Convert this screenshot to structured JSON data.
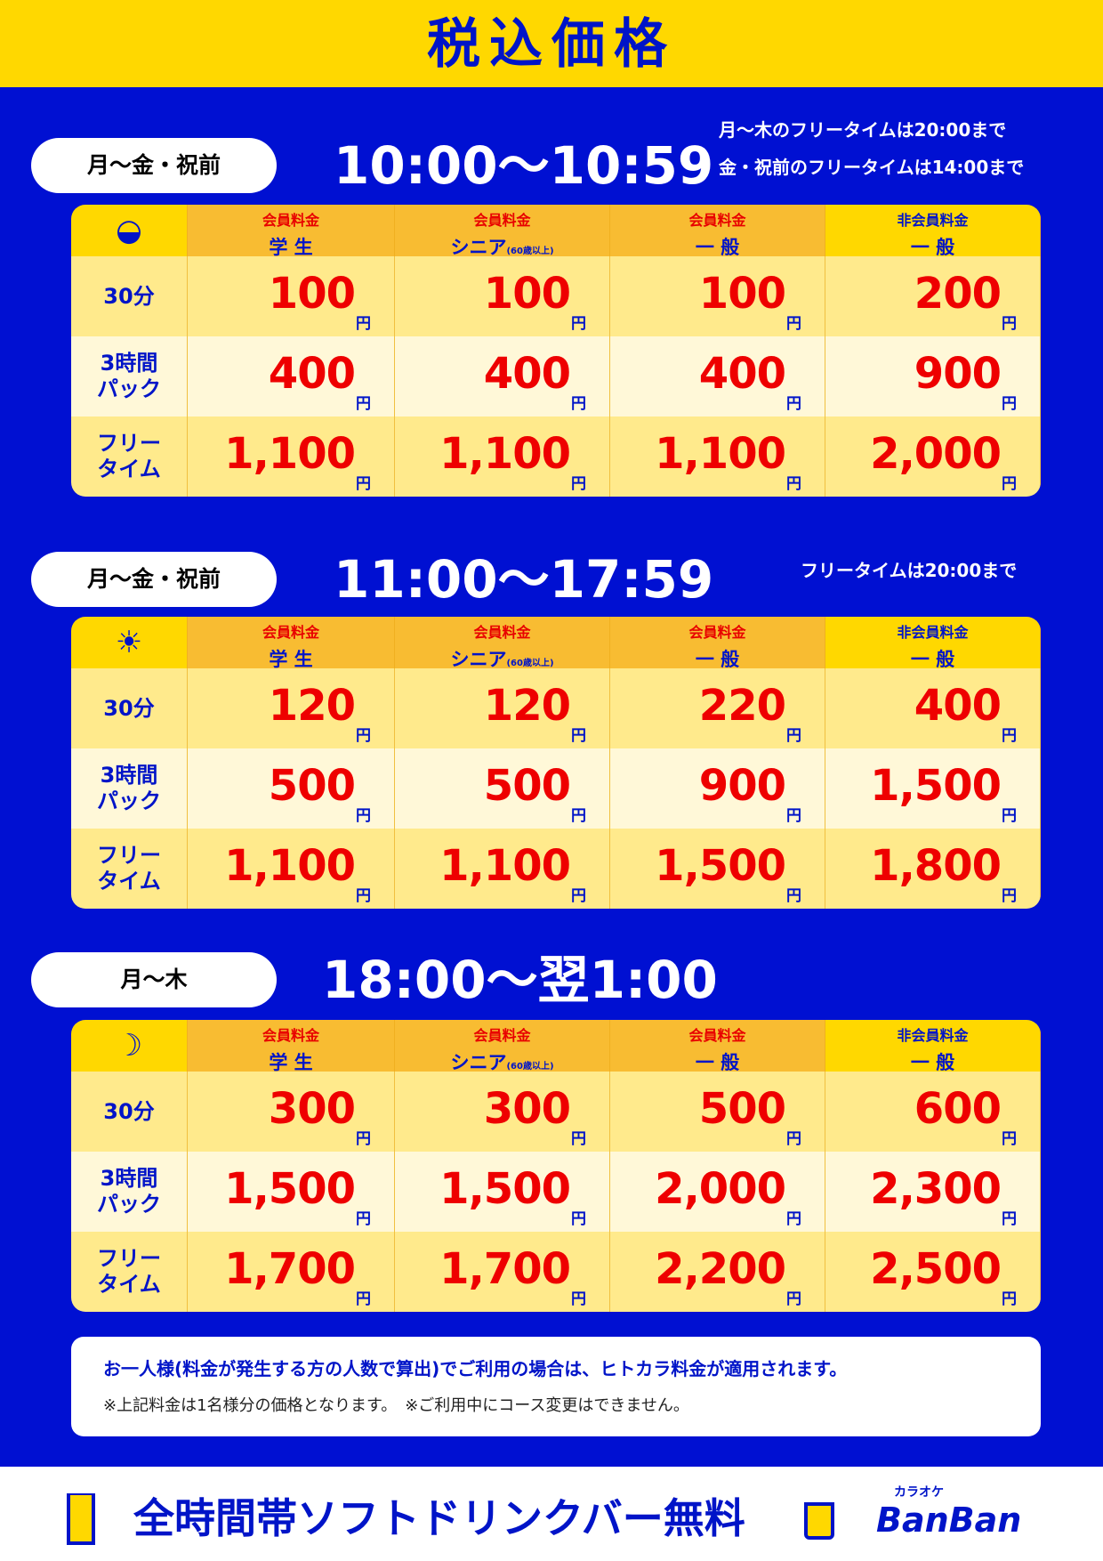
{
  "title": "税込価格",
  "sections": [
    {
      "days": "月〜金・祝前",
      "time": "10:00〜10:59",
      "notes": [
        "月〜木のフリータイムは20:00まで",
        "金・祝前のフリータイムは14:00まで"
      ],
      "icon": "sunrise-icon",
      "iconGlyph": "◒",
      "rows": [
        {
          "label": "30分",
          "values": [
            "100",
            "100",
            "100",
            "200"
          ]
        },
        {
          "label": "3時間\nパック",
          "values": [
            "400",
            "400",
            "400",
            "900"
          ]
        },
        {
          "label": "フリー\nタイム",
          "values": [
            "1,100",
            "1,100",
            "1,100",
            "2,000"
          ]
        }
      ]
    },
    {
      "days": "月〜金・祝前",
      "time": "11:00〜17:59",
      "notes": [
        "フリータイムは20:00まで"
      ],
      "icon": "sun-icon",
      "iconGlyph": "☀",
      "rows": [
        {
          "label": "30分",
          "values": [
            "120",
            "120",
            "220",
            "400"
          ]
        },
        {
          "label": "3時間\nパック",
          "values": [
            "500",
            "500",
            "900",
            "1,500"
          ]
        },
        {
          "label": "フリー\nタイム",
          "values": [
            "1,100",
            "1,100",
            "1,500",
            "1,800"
          ]
        }
      ]
    },
    {
      "days": "月〜木",
      "time": "18:00〜翌1:00",
      "notes": [],
      "icon": "moon-icon",
      "iconGlyph": "☽",
      "rows": [
        {
          "label": "30分",
          "values": [
            "300",
            "300",
            "500",
            "600"
          ]
        },
        {
          "label": "3時間\nパック",
          "values": [
            "1,500",
            "1,500",
            "2,000",
            "2,300"
          ]
        },
        {
          "label": "フリー\nタイム",
          "values": [
            "1,700",
            "1,700",
            "2,200",
            "2,500"
          ]
        }
      ]
    }
  ],
  "columns": [
    {
      "type": "会員料金",
      "name": "学 生",
      "sub": ""
    },
    {
      "type": "会員料金",
      "name": "シニア",
      "sub": "(60歳以上)"
    },
    {
      "type": "会員料金",
      "name": "一 般",
      "sub": ""
    },
    {
      "type": "非会員料金",
      "name": "一 般",
      "sub": ""
    }
  ],
  "currency": "円",
  "notice": {
    "line1": "お一人様(料金が発生する方の人数で算出)でご利用の場合は、ヒトカラ料金が適用されます。",
    "line2": "※上記料金は1名様分の価格となります。　※ご利用中にコース変更はできません。"
  },
  "footer": {
    "text": "全時間帯ソフトドリンクバー無料",
    "logo_kana": "カラオケ",
    "logo": "BanBan"
  }
}
